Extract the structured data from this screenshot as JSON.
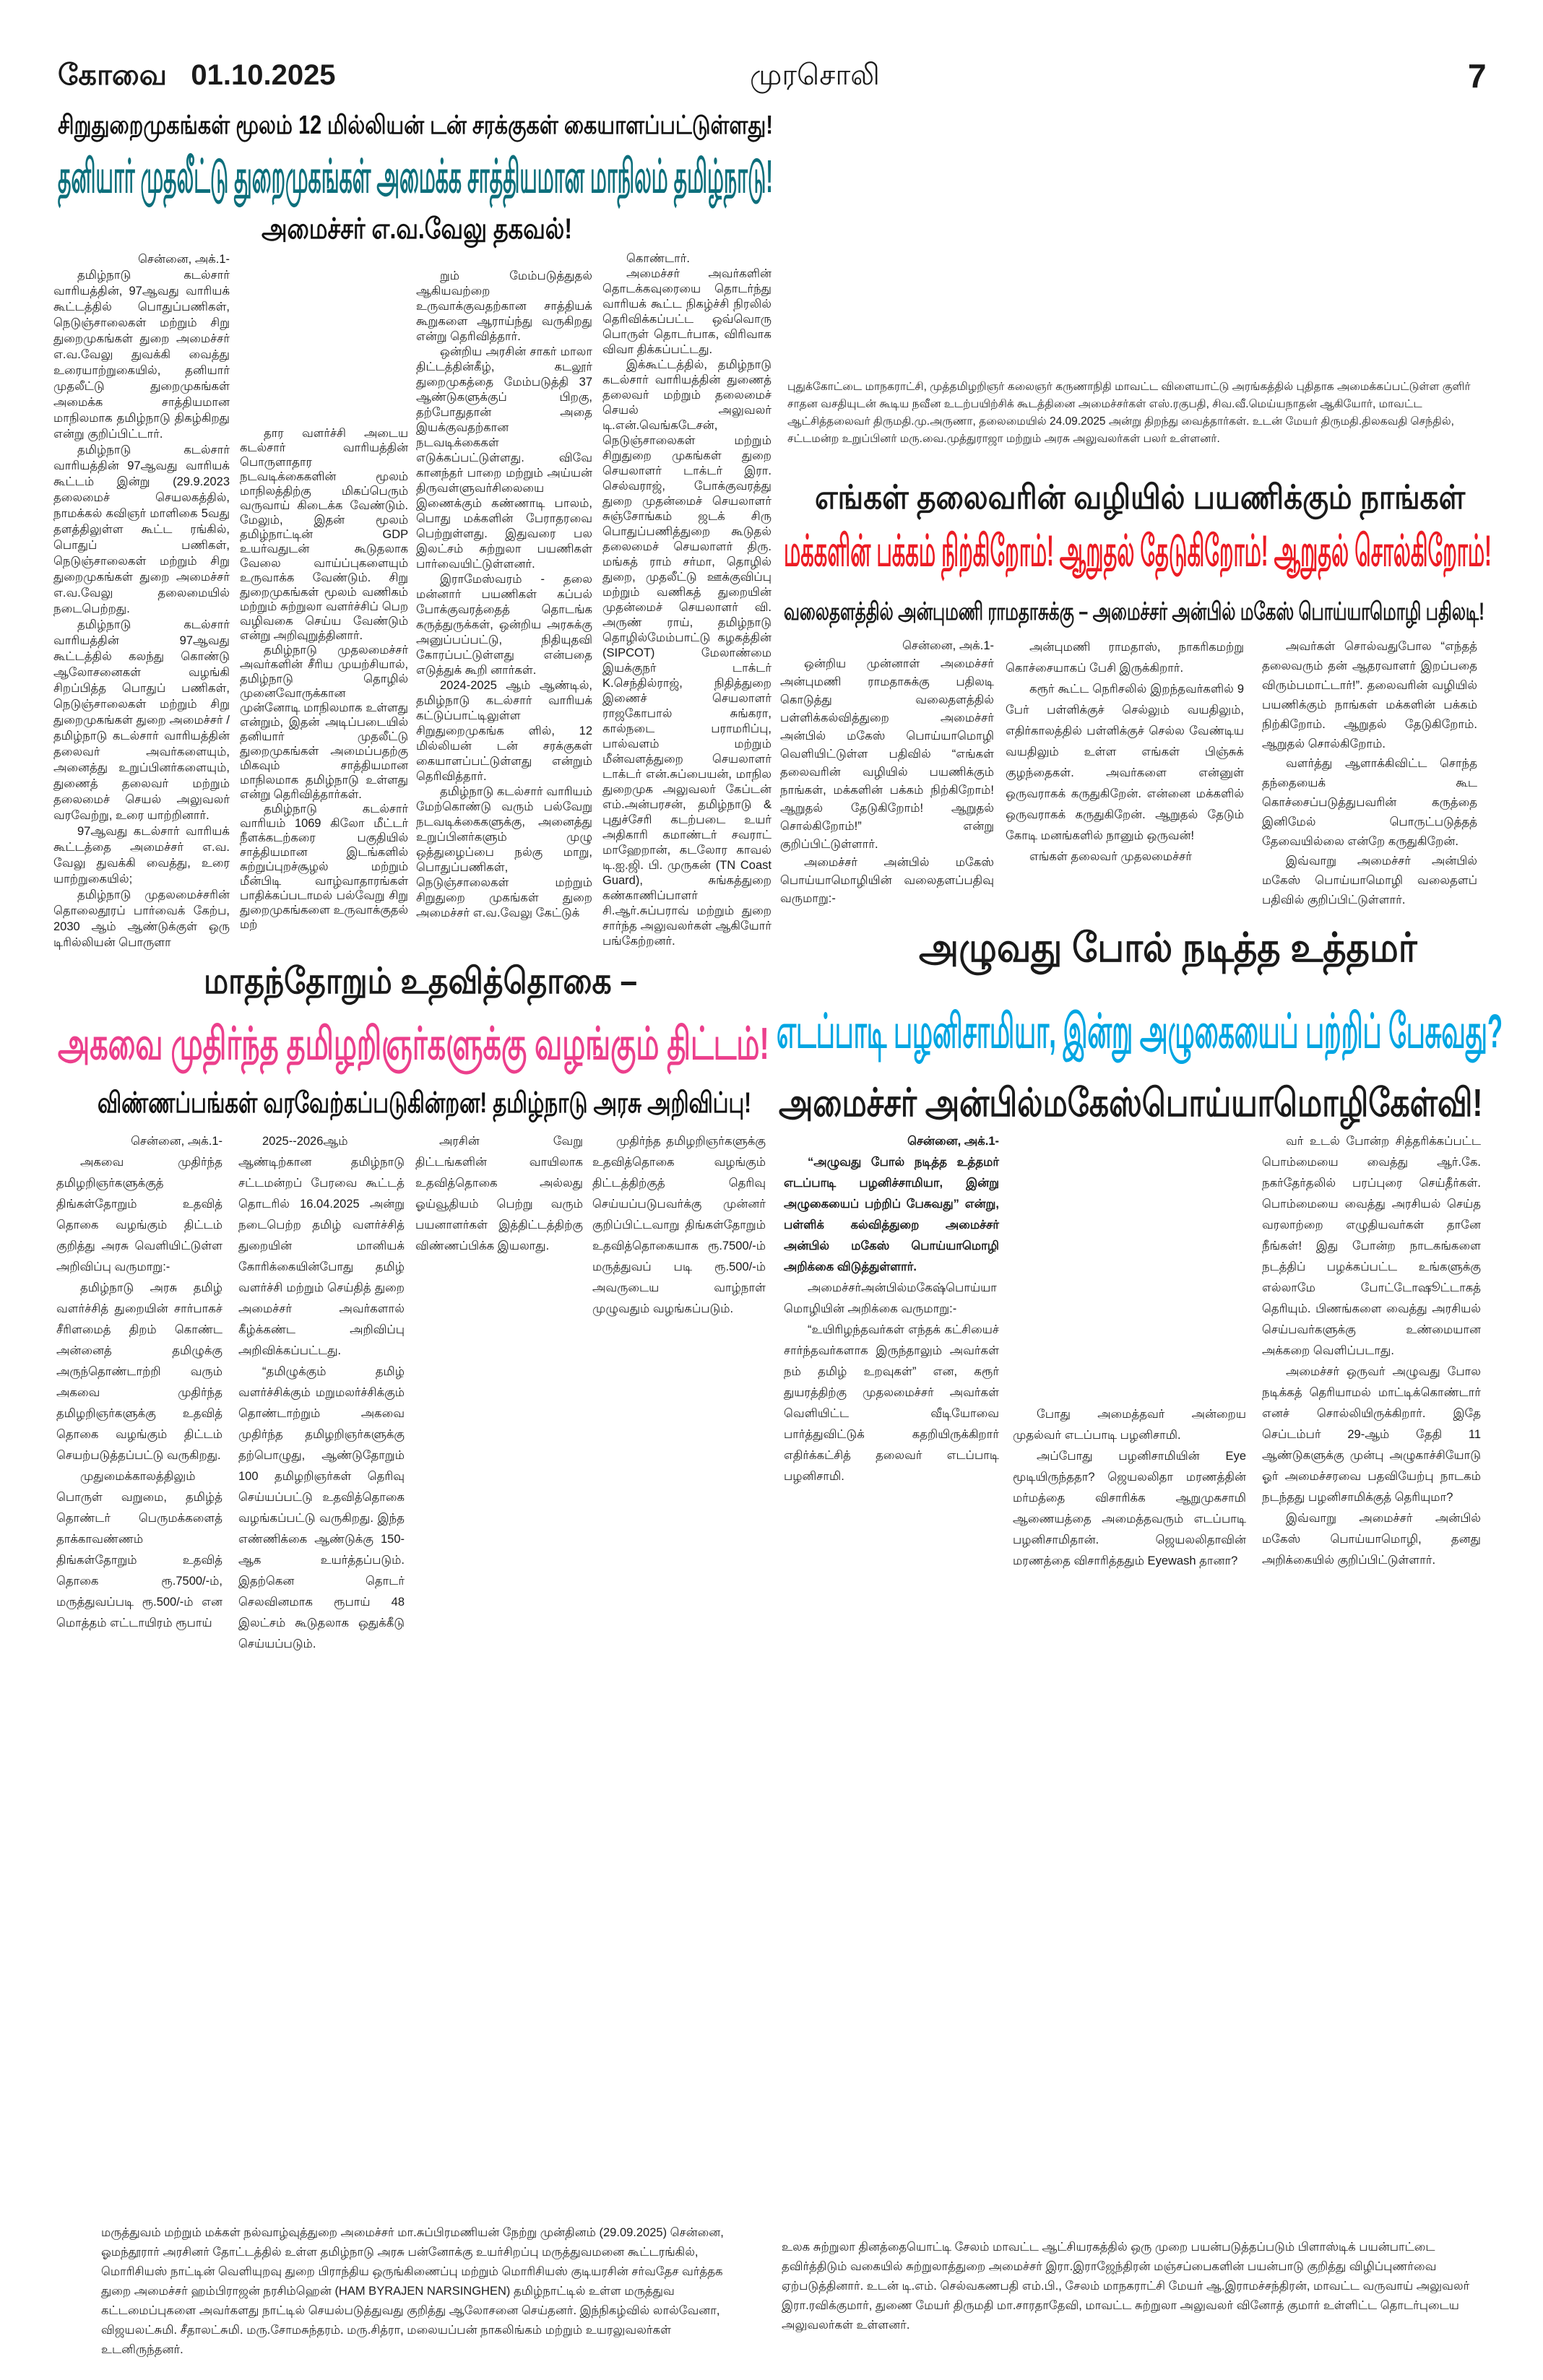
{
  "masthead": {
    "edition": "கோவை",
    "date": "01.10.2025",
    "paper_name": "முரசொலி",
    "page_number": "7"
  },
  "article_ports": {
    "kicker": "சிறுதுறைமுகங்கள் மூலம் 12 மில்லியன் டன் சரக்குகள் கையாளப்பட்டுள்ளது!",
    "headline": "தனியார் முதலீட்டு துறைமுகங்கள் அமைக்க சாத்தியமான மாநிலம் தமிழ்நாடு!",
    "subhead": "அமைச்சர் எ.வ.வேலு தகவல்!",
    "columns": [
      {
        "paragraphs": [
          "சென்னை, அக்.1-",
          "தமிழ்நாடு கடல்சார் வாரியத்தின், 97ஆவது வாரியக் கூட்டத்தில் பொதுப்பணிகள், நெடுஞ்சாலைகள் மற்றும் சிறு துறைமுகங்கள் துறை அமைச்சர் எ.வ.வேலு துவக்கி வைத்து உரையாற்றுகையில், தனியார் முதலீட்டு துறைமுகங்கள் அமைக்க சாத்தியமான மாநிலமாக தமிழ்நாடு திகழ்கிறது என்று குறிப்பிட்டார்.",
          "தமிழ்நாடு கடல்சார் வாரியத்தின் 97ஆவது வாரியக் கூட்டம் இன்று (29.9.2023 தலைமைச் செயலகத்தில், நாமக்கல் கவிஞர் மாளிகை 5வது தளத்திலுள்ள கூட்ட ரங்கில், பொதுப் பணிகள், நெடுஞ்சாலைகள் மற்றும் சிறு துறைமுகங்கள் துறை அமைச்சர் எ.வ.வேலு தலைமையில் நடைபெற்றது.",
          "தமிழ்நாடு கடல்சார் வாரியத்தின் 97ஆவது கூட்டத்தில் கலந்து கொண்டு ஆலோசனைகள் வழங்கி சிறப்பித்த பொதுப் பணிகள், நெடுஞ்சாலைகள் மற்றும் சிறு துறைமுகங்கள் துறை அமைச்சர் / தமிழ்நாடு கடல்சார் வாரியத்தின் தலைவர் அவர்களையும், அனைத்து உறுப்பினர்களையும், துணைத் தலைவர் மற்றும் தலைமைச் செயல் அலுவலர் வரவேற்று, உரை யாற்றினார்.",
          "97ஆவது கடல்சார் வாரியக் கூட்டத்தை அமைச்சர் எ.வ. வேலு துவக்கி வைத்து, உரை யாற்றுகையில்;",
          "தமிழ்நாடு முதலமைச்சரின் தொலைதூரப் பார்வைக் கேற்ப, 2030 ஆம் ஆண்டுக்குள் ஒரு டிரில்லியன் பொருளா"
        ]
      },
      {
        "paragraphs": [
          "தார வளர்ச்சி அடைய கடல்சார் வாரியத்தின் பொருளாதார நடவடிக்கைகளின் மூலம் மாநிலத்திற்கு மிகப்பெரும் வருவாய் கிடைக்க வேண்டும். மேலும், இதன் மூலம் தமிழ்நாட்டின் GDP உயர்வதுடன் கூடுதலாக வேலை வாய்ப்புகளையும் உருவாக்க வேண்டும். சிறு துறைமுகங்கள் மூலம் வணிகம் மற்றும் சுற்றுலா வளர்ச்சிப் பெற வழிவகை செய்ய வேண்டும் என்று அறிவுறுத்தினார்.",
          "தமிழ்நாடு முதலமைச்சர் அவர்களின் சீரிய முயற்சியால், தமிழ்நாடு தொழில் முனைவோருக்கான முன்னோடி மாநிலமாக உள்ளது என்றும், இதன் அடிப்படையில் தனியார் முதலீட்டு துறைமுகங்கள் அமைப்பதற்கு மிகவும் சாத்தியமான மாநிலமாக தமிழ்நாடு உள்ளது என்று தெரிவித்தார்கள்.",
          "தமிழ்நாடு கடல்சார் வாரியம் 1069 கிலோ மீட்டர் நீளக்கடற்கரை பகுதியில் சாத்தியமான இடங்களில் சுற்றுப்புறச்சூழல் மற்றும் மீன்பிடி வாழ்வாதாரங்கள் பாதிக்கப்படாமல் பல்வேறு சிறு துறைமுகங்களை உருவாக்குதல் மற்"
        ]
      },
      {
        "paragraphs": [
          "றும் மேம்படுத்துதல் ஆகியவற்றை உருவாக்குவதற்கான சாத்தியக் கூறுகளை ஆராய்ந்து வருகிறது என்று தெரிவித்தார்.",
          "ஒன்றிய அரசின் சாகர் மாலா திட்டத்தின்கீழ், கடலூர் துறைமுகத்தை மேம்படுத்தி 37 ஆண்டுகளுக்குப் பிறகு, தற்போதுதான் அதை இயக்குவதற்கான நடவடிக்கைகள் எடுக்கப்பட்டுள்ளது. விவே கானந்தர் பாறை மற்றும் அய்யன் திருவள்ளுவர்சிலையை இணைக்கும் கண்ணாடி பாலம், பொது மக்களின் பேராதரவை பெற்றுள்ளது. இதுவரை பல இலட்சம் சுற்றுலா பயணிகள் பார்வையிட்டுள்ளனர்.",
          "இராமேஸ்வரம் - தலை மன்னார் பயணிகள் கப்பல் போக்குவரத்தைத் தொடங்க கருத்துருக்கள், ஒன்றிய அரசுக்கு அனுப்பப்பட்டு, நிதியுதவி கோரப்பட்டுள்ளது என்பதை எடுத்துக் கூறி னார்கள்.",
          "2024-2025 ஆம் ஆண்டில், தமிழ்நாடு கடல்சார் வாரியக் கட்டுப்பாட்டிலுள்ள சிறுதுறைமுகங்க ளில், 12 மில்லியன் டன் சரக்குகள் கையாளப்பட்டுள்ளது என்றும் தெரிவித்தார்.",
          "தமிழ்நாடு கடல்சார் வாரியம் மேற்கொண்டு வரும் பல்வேறு நடவடிக்கைகளுக்கு, அனைத்து உறுப்பினர்களும் முழு ஒத்துழைப்பை நல்கு மாறு, பொதுப்பணிகள், நெடுஞ்சாலைகள் மற்றும் சிறுதுறை முகங்கள் துறை அமைச்சர் எ.வ.வேலு கேட்டுக்"
        ]
      },
      {
        "paragraphs": [
          "கொண்டார்.",
          "அமைச்சர் அவர்களின் தொடக்கவுரையை தொடர்ந்து வாரியக் கூட்ட நிகழ்ச்சி நிரலில் தெரிவிக்கப்பட்ட ஒவ்வொரு பொருள் தொடர்பாக, விரிவாக விவா திக்கப்பட்டது.",
          "இக்கூட்டத்தில், தமிழ்நாடு கடல்சார் வாரியத்தின் துணைத் தலைவர் மற்றும் தலைமைச் செயல் அலுவலர் டி.என்.வெங்கடேசன், நெடுஞ்சாலைகள் மற்றும் சிறுதுறை முகங்கள் துறை செயலாளர் டாக்டர் இரா. செல்வராஜ், போக்குவரத்து துறை முதன்மைச் செயலாளர் சுஞ்சோங்கம் ஜடக் சிரு பொதுப்பணித்துறை கூடுதல் தலைமைச் செயலாளர் திரு. மங்கத் ராம் சர்மா, தொழில் துறை, முதலீட்டு ஊக்குவிப்பு மற்றும் வணிகத் துறையின் முதன்மைச் செயலாளர் வி. அருண் ராய், தமிழ்நாடு தொழில்மேம்பாட்டு கழகத்தின் (SIPCOT) மேலாண்மை இயக்குநர் டாக்டர் K.செந்தில்ராஜ், நிதித்துறை இணைச் செயலாளர் ராஜகோபால் சுங்கரா, கால்நடை பராமரிப்பு, பால்வளம் மற்றும் மீன்வளத்துறை செயலாளர் டாக்டர் என்.சுப்பையன், மாநில துறைமுக அலுவலர் கேப்டன் எம்.அன்பரசன், தமிழ்நாடு & புதுச்சேரி கடற்படை உயர் அதிகாரி கமாண்டர் சவராட் மாஹேறான், கடலோர காவல் டி.ஐ.ஜி. பி. முருகன் (TN Coast Guard), சுங்கத்துறை கண்காணிப்பாளர் சி.ஆர்.சுப்பராவ் மற்றும் துறை சார்ந்த அலுவலர்கள் ஆகியோர் பங்கேற்றனர்."
        ]
      }
    ]
  },
  "photo_caption_pudukkottai": "புதுக்கோட்டை மாநகராட்சி, முத்தமிழறிஞர் கலைஞர் கருணாநிதி மாவட்ட விளையாட்டு அரங்கத்தில் புதிதாக அமைக்கப்பட்டுள்ள குளிர் சாதன வசதியுடன் கூடிய நவீன உடற்பயிற்சிக் கூடத்தினை அமைச்சர்கள் எஸ்.ரகுபதி, சிவ.வீ.மெய்யநாதன் ஆகியோர், மாவட்ட ஆட்சித்தலைவர் திருமதி.மு.அருணா, தலைமையில் 24.09.2025 அன்று திறந்து வைத்தார்கள். உடன் மேயர் திருமதி.திலகவதி செந்தில், சட்டமன்ற உறுப்பினர் மரு.வை.முத்துராஜா மற்றும் அரசு அலுவலர்கள் பலர் உள்ளனர்.",
  "article_anbil_reply": {
    "kicker": "எங்கள் தலைவரின் வழியில் பயணிக்கும் நாங்கள்",
    "headline": "மக்களின் பக்கம் நிற்கிறோம்! ஆறுதல் தேடுகிறோம்! ஆறுதல் சொல்கிறோம்!",
    "subhead": "வலைதளத்தில் அன்புமணி ராமதாசுக்கு – அமைச்சர் அன்பில் மகேஸ் பொய்யாமொழி பதிலடி!",
    "columns": [
      {
        "paragraphs": [
          "சென்னை, அக்.1-",
          "ஒன்றிய முன்னாள் அமைச்சர் அன்புமணி ராமதாசுக்கு பதிலடி கொடுத்து வலைதளத்தில் பள்ளிக்கல்வித்துறை அமைச்சர் அன்பில் மகேஸ் பொய்யாமொழி வெளியிட்டுள்ள பதிவில் “எங்கள் தலைவரின் வழியில் பயணிக்கும் நாங்கள், மக்களின் பக்கம் நிற்கிறோம்! ஆறுதல் தேடுகிறோம்! ஆறுதல் சொல்கிறோம்!” என்று குறிப்பிட்டுள்ளார்.",
          "அமைச்சர் அன்பில் மகேஸ் பொய்யாமொழியின் வலைதளப்பதிவு வருமாறு:-"
        ]
      },
      {
        "paragraphs": [
          "அன்புமணி ராமதாஸ், நாகரிகமற்று கொச்சையாகப் பேசி இருக்கிறார்.",
          "கரூர் கூட்ட நெரிசலில் இறந்தவர்களில் 9 பேர் பள்ளிக்குச் செல்லும் வயதிலும், எதிர்காலத்தில் பள்ளிக்குச் செல்ல வேண்டிய வயதிலும் உள்ள எங்கள் பிஞ்சுக் குழந்தைகள். அவர்களை என்னுள் ஒருவராகக் கருதுகிறேன். என்னை மக்களில் ஒருவராகக் கருதுகிறேன். ஆறுதல் தேடும் கோடி மனங்களில் நானும் ஒருவன்!",
          "எங்கள் தலைவர் முதலமைச்சர்"
        ]
      },
      {
        "paragraphs": [
          "அவர்கள் சொல்வதுபோல “எந்தத் தலைவரும் தன் ஆதரவாளர் இறப்பதை விரும்பமாட்டார்!”. தலைவரின் வழியில் பயணிக்கும் நாங்கள் மக்களின் பக்கம் நிற்கிறோம். ஆறுதல் தேடுகிறோம். ஆறுதல் சொல்கிறோம்.",
          "வளர்த்து ஆளாக்கிவிட்ட சொந்த தந்தையைக் கூட கொச்சைப்படுத்துபவரின் கருத்தை இனிமேல் பொருட்படுத்தத் தேவையில்லை என்றே கருதுகிறேன்.",
          "இவ்வாறு அமைச்சர் அன்பில் மகேஸ் பொய்யாமொழி வலைதளப் பதிவில் குறிப்பிட்டுள்ளார்."
        ]
      }
    ]
  },
  "article_scholars": {
    "kicker": "மாதந்தோறும் உதவித்தொகை –",
    "headline": "அகவை முதிர்ந்த தமிழறிஞர்களுக்கு வழங்கும் திட்டம்!",
    "subhead": "விண்ணப்பங்கள் வரவேற்கப்படுகின்றன! தமிழ்நாடு அரசு அறிவிப்பு!",
    "columns": [
      {
        "paragraphs": [
          "சென்னை, அக்.1-",
          "அகவை முதிர்ந்த தமிழறிஞர்களுக்குத் திங்கள்தோறும் உதவித் தொகை வழங்கும் திட்டம் குறித்து அரசு வெளியிட்டுள்ள அறிவிப்பு வருமாறு:-",
          "தமிழ்நாடு அரசு தமிழ் வளர்ச்சித் துறையின் சார்பாகச் சீரிளமைத் திறம் கொண்ட அன்னைத் தமிழுக்கு அருந்தொண்டாற்றி வரும் அகவை முதிர்ந்த தமிழறிஞர்களுக்கு உதவித் தொகை வழங்கும் திட்டம் செயற்படுத்தப்பட்டு வருகிறது.",
          "முதுமைக்காலத்திலும் பொருள் வறுமை, தமிழ்த் தொண்டர் பெருமக்களைத் தாக்காவண்ணம் திங்கள்தோறும் உதவித் தொகை ரூ.7500/-ம், மருத்துவப்படி ரூ.500/-ம் என மொத்தம் எட்டாயிரம் ரூபாய்"
        ]
      },
      {
        "paragraphs": [
          "2025--2026ஆம் ஆண்டிற்கான தமிழ்நாடு சட்டமன்றப் பேரவை கூட்டத் தொடரில் 16.04.2025 அன்று நடைபெற்ற தமிழ் வளர்ச்சித் துறையின் மானியக் கோரிக்கையின்போது தமிழ் வளர்ச்சி மற்றும் செய்தித் துறை அமைச்சர் அவர்களால் கீழ்க்கண்ட அறிவிப்பு அறிவிக்கப்பட்டது.",
          "“தமிழுக்கும் தமிழ் வளர்ச்சிக்கும் மறுமலர்ச்சிக்கும் தொண்டாற்றும் அகவை முதிர்ந்த தமிழறிஞர்களுக்கு தற்பொழுது, ஆண்டுதோறும் 100 தமிழறிஞர்கள் தெரிவு செய்யப்பட்டு உதவித்தொகை வழங்கப்பட்டு வருகிறது. இந்த எண்ணிக்கை ஆண்டுக்கு 150-ஆக உயர்த்தப்படும். இதற்கென தொடர் செலவினமாக ரூபாய் 48 இலட்சம் கூடுதலாக ஒதுக்கீடு செய்யப்படும்."
        ]
      },
      {
        "paragraphs": [
          "அரசின் வேறு திட்டங்களின் வாயிலாக உதவித்தொகை அல்லது ஓய்வூதியம் பெற்று வரும் பயனாளர்கள் இத்திட்டத்திற்கு விண்ணப்பிக்க இயலாது."
        ]
      },
      {
        "paragraphs": [
          "முதிர்ந்த தமிழறிஞர்களுக்கு உதவித்தொகை வழங்கும் திட்டத்திற்குத் தெரிவு செய்யப்படுபவர்க்கு முன்னர் குறிப்பிட்டவாறு திங்கள்தோறும் உதவித்தொகையாக ரூ.7500/-ம் மருத்துவப் படி ரூ.500/-ம் அவருடைய வாழ்நாள் முழுவதும் வழங்கப்படும்."
        ]
      }
    ]
  },
  "article_anbil_question": {
    "kicker": "அழுவது போல் நடித்த உத்தமர்",
    "headline": "எடப்பாடி பழனிசாமியா, இன்று அழுகையைப் பற்றிப் பேசுவது?",
    "subhead": "அமைச்சர் அன்பில்மகேஸ்பொய்யாமொழிகேள்வி!",
    "columns": [
      {
        "paragraphs": [
          "சென்னை, அக்.1-",
          "“அழுவது போல் நடித்த உத்தமர் எடப்பாடி பழனிச்சாமியா, இன்று அழுகையைப் பற்றிப் பேசுவது” என்று, பள்ளிக் கல்வித்துறை அமைச்சர் அன்பில் மகேஸ் பொய்யாமொழி அறிக்கை விடுத்துள்ளார்.",
          "அமைச்சர்அன்பில்மகேஷ்பொய்யாமொழியின் அறிக்கை வருமாறு:-",
          "“உயிரிழந்தவர்கள் எந்தக் கட்சியைச் சார்ந்தவர்களாக இருந்தாலும் அவர்கள் நம் தமிழ் உறவுகள்” என, கரூர் துயரத்திற்கு முதலமைச்சர் அவர்கள் வெளியிட்ட வீடியோவை பார்த்துவிட்டுக் கதறியிருக்கிறார் எதிர்க்கட்சித் தலைவர் எடப்பாடி பழனிசாமி."
        ]
      },
      {
        "paragraphs": [
          "போது அமைத்தவர் அன்றைய முதல்வர் எடப்பாடி பழனிசாமி.",
          "அப்போது பழனிசாமியின் Eye மூடியிருந்ததா? ஜெயலலிதா மரணத்தின் மர்மத்தை விசாரிக்க ஆறுமுகசாமி ஆணையத்தை அமைத்தவரும் எடப்பாடி பழனிசாமிதான். ஜெயலலிதாவின் மரணத்தை விசாரித்ததும் Eyewash தானா?"
        ]
      },
      {
        "paragraphs": [
          "வர் உடல் போன்ற சித்தரிக்கப்பட்ட பொம்மையை வைத்து ஆர்.கே. நகர்தேர்தலில் பரப்புரை செய்தீர்கள். பொம்மையை வைத்து அரசியல் செய்த வரலாற்றை எழுதியவர்கள் தானே நீங்கள்! இது போன்ற நாடகங்களை நடத்திப் பழக்கப்பட்ட உங்களுக்கு எல்லாமே போட்டோஷூட்டாகத் தெரியும். பிணங்களை வைத்து அரசியல் செய்பவர்களுக்கு உண்மையான அக்கறை வெளிப்படாது.",
          "அமைச்சர் ஒருவர் அழுவது போல நடிக்கத் தெரியாமல் மாட்டிக்கொண்டார் எனச் சொல்லியிருக்கிறார். இதே செப்டம்பர் 29-ஆம் தேதி 11 ஆண்டுகளுக்கு முன்பு அழுகாச்சியோடு ஓர் அமைச்சரவை பதவியேற்பு நாடகம் நடந்தது பழனிசாமிக்குத் தெரியுமா?",
          "இவ்வாறு அமைச்சர் அன்பில் மகேஸ் பொய்யாமொழி, தனது அறிக்கையில் குறிப்பிட்டுள்ளார்."
        ]
      }
    ]
  },
  "photo_caption_health": "மருத்துவம் மற்றும் மக்கள் நல்வாழ்வுத்துறை அமைச்சர் மா.சுப்பிரமணியன் நேற்று முன்தினம் (29.09.2025) சென்னை, ஓமந்தூரார் அரசினர் தோட்டத்தில் உள்ள தமிழ்நாடு அரசு பன்னோக்கு உயர்சிறப்பு மருத்துவமனை கூட்டரங்கில், மொரிசியஸ் நாட்டின் வெளியுறவு துறை பிராந்திய ஒருங்கிணைப்பு மற்றும் மொரிசியஸ் குடியரசின் சர்வதேச வர்த்தக துறை அமைச்சர் ஹம்பிராஜன் நரசிம்ஹென் (HAM BYRAJEN NARSINGHEN) தமிழ்நாட்டில் உள்ள மருத்துவ கட்டமைப்புகளை அவர்களது நாட்டில் செயல்படுத்துவது குறித்து ஆலோசனை செய்தனர். இந்நிகழ்வில் லால்வேனா, விஜயலட்சுமி. சீதாலட்சுமி. மரு.சோமசுந்தரம். மரு.சித்ரா, மலையப்பன் நாகலிங்கம் மற்றும் உயரலுவலர்கள் உடனிருந்தனர்.",
  "photo_caption_salem": "உலக சுற்றுலா தினத்தையொட்டி சேலம் மாவட்ட ஆட்சியரகத்தில் ஒரு முறை பயன்படுத்தப்படும் பிளாஸ்டிக் பயன்பாட்டை தவிர்த்திடும் வகையில் சுற்றுலாத்துறை அமைச்சர் இரா.இராஜேந்திரன் மஞ்சப்பைகளின் பயன்பாடு குறித்து விழிப்புணர்வை ஏற்படுத்தினார். உடன் டி.எம். செல்வகணபதி எம்.பி., சேலம் மாநகராட்சி மேயர் ஆ.இராமச்சந்திரன், மாவட்ட வருவாய் அலுவலர் இரா.ரவிக்குமார், துணை மேயர் திருமதி மா.சாரதாதேவி, மாவட்ட சுற்றுலா அலுவலர் வினோத் குமார் உள்ளிட்ட தொடர்புடைய அலுவலர்கள் உள்ளனர்.",
  "colors": {
    "teal_headline": "#0d6f7c",
    "red_headline": "#ec1c24",
    "pink_headline": "#ec3f8c",
    "blue_headline": "#00a6e3"
  }
}
